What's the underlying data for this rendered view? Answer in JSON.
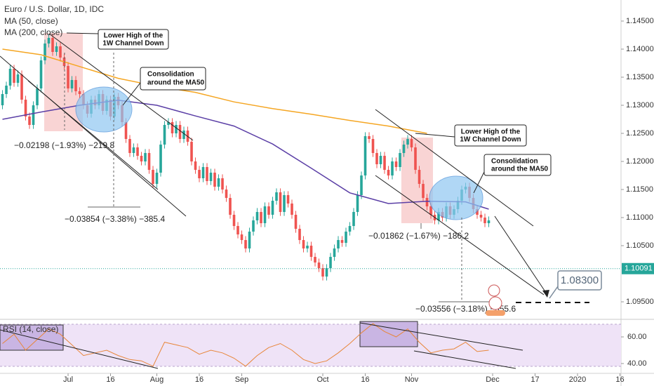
{
  "chart_data": {
    "type": "candlestick",
    "title": "Euro / U.S. Dollar, 1D, IDC",
    "up_color": "#26a69a",
    "down_color": "#ef5350",
    "open": [
      1.13,
      1.132,
      1.1335,
      1.1365,
      1.134,
      1.1355,
      1.131,
      1.128,
      1.1265,
      1.13,
      1.133,
      1.138,
      1.141,
      1.142,
      1.1395,
      1.1405,
      1.1385,
      1.137,
      1.133,
      1.1345,
      1.1325,
      1.132,
      1.13,
      1.1285,
      1.131,
      1.13,
      1.132,
      1.129,
      1.131,
      1.128,
      1.1315,
      1.13,
      1.127,
      1.124,
      1.1215,
      1.1225,
      1.121,
      1.12,
      1.1215,
      1.1185,
      1.116,
      1.118,
      1.123,
      1.1265,
      1.127,
      1.125,
      1.1265,
      1.124,
      1.1255,
      1.1235,
      1.12,
      1.1185,
      1.117,
      1.119,
      1.1165,
      1.118,
      1.1155,
      1.117,
      1.115,
      1.1135,
      1.1105,
      1.1085,
      1.107,
      1.106,
      1.1045,
      1.1075,
      1.1095,
      1.111,
      1.109,
      1.112,
      1.1105,
      1.113,
      1.1145,
      1.111,
      1.114,
      1.1125,
      1.1105,
      1.108,
      1.106,
      1.1045,
      1.105,
      1.103,
      1.102,
      1.101,
      1.0995,
      1.101,
      1.103,
      1.1045,
      1.106,
      1.1055,
      1.1075,
      1.1085,
      1.111,
      1.114,
      1.1175,
      1.1245,
      1.124,
      1.1215,
      1.1195,
      1.121,
      1.1185,
      1.1175,
      1.12,
      1.119,
      1.1215,
      1.123,
      1.124,
      1.1225,
      1.1185,
      1.116,
      1.1135,
      1.112,
      1.1105,
      1.1095,
      1.111,
      1.11,
      1.112,
      1.1105,
      1.1115,
      1.113,
      1.115,
      1.1155,
      1.1135,
      1.1115,
      1.1105,
      1.11,
      1.109
    ],
    "high": [
      1.1327,
      1.1342,
      1.1372,
      1.1372,
      1.1362,
      1.1362,
      1.1317,
      1.1287,
      1.1307,
      1.1337,
      1.1387,
      1.1417,
      1.1427,
      1.1427,
      1.1412,
      1.1412,
      1.1392,
      1.1377,
      1.1352,
      1.1352,
      1.1332,
      1.1327,
      1.1307,
      1.1317,
      1.1317,
      1.1327,
      1.1327,
      1.1317,
      1.1317,
      1.1322,
      1.1322,
      1.1307,
      1.1277,
      1.1247,
      1.1232,
      1.1232,
      1.1217,
      1.1222,
      1.1222,
      1.1192,
      1.1187,
      1.1237,
      1.1272,
      1.1277,
      1.1277,
      1.1272,
      1.1272,
      1.1262,
      1.1262,
      1.1242,
      1.1207,
      1.1192,
      1.1197,
      1.1197,
      1.1187,
      1.1187,
      1.1177,
      1.1177,
      1.1157,
      1.1142,
      1.1112,
      1.1092,
      1.1077,
      1.1067,
      1.1082,
      1.1102,
      1.1117,
      1.1117,
      1.1127,
      1.1127,
      1.1137,
      1.1152,
      1.1152,
      1.1147,
      1.1147,
      1.1132,
      1.1112,
      1.1087,
      1.1067,
      1.1057,
      1.1057,
      1.1037,
      1.1027,
      1.1017,
      1.1017,
      1.1037,
      1.1052,
      1.1067,
      1.1067,
      1.1082,
      1.1092,
      1.1117,
      1.1147,
      1.1182,
      1.1252,
      1.1252,
      1.1247,
      1.1222,
      1.1217,
      1.1217,
      1.1192,
      1.1207,
      1.1207,
      1.1222,
      1.1237,
      1.1247,
      1.1247,
      1.1232,
      1.1192,
      1.1167,
      1.1142,
      1.1127,
      1.1112,
      1.1117,
      1.1117,
      1.1127,
      1.1127,
      1.1122,
      1.1137,
      1.1157,
      1.1162,
      1.1162,
      1.1142,
      1.1122,
      1.1112,
      1.1107,
      1.1102
    ],
    "low": [
      1.1293,
      1.1313,
      1.1328,
      1.1333,
      1.1333,
      1.1303,
      1.1273,
      1.1258,
      1.1258,
      1.1293,
      1.1323,
      1.1373,
      1.1403,
      1.1388,
      1.1388,
      1.1378,
      1.1363,
      1.1323,
      1.1323,
      1.1318,
      1.1313,
      1.1293,
      1.1278,
      1.1278,
      1.1293,
      1.1293,
      1.1283,
      1.1283,
      1.1273,
      1.1273,
      1.1293,
      1.1263,
      1.1233,
      1.1208,
      1.1208,
      1.1203,
      1.1193,
      1.1193,
      1.1178,
      1.1153,
      1.1153,
      1.1173,
      1.1223,
      1.1258,
      1.1243,
      1.1243,
      1.1233,
      1.1233,
      1.1228,
      1.1193,
      1.1178,
      1.1163,
      1.1163,
      1.1158,
      1.1158,
      1.1148,
      1.1148,
      1.1143,
      1.1128,
      1.1098,
      1.1078,
      1.1063,
      1.1053,
      1.1038,
      1.1038,
      1.1068,
      1.1088,
      1.1083,
      1.1083,
      1.1098,
      1.1098,
      1.1123,
      1.1103,
      1.1103,
      1.1118,
      1.1098,
      1.1073,
      1.1053,
      1.1038,
      1.1038,
      1.1023,
      1.1013,
      1.1003,
      1.0988,
      1.0988,
      1.1003,
      1.1023,
      1.1038,
      1.1048,
      1.1048,
      1.1068,
      1.1078,
      1.1103,
      1.1133,
      1.1168,
      1.1233,
      1.1208,
      1.1188,
      1.1188,
      1.1178,
      1.1168,
      1.1168,
      1.1183,
      1.1183,
      1.1208,
      1.1223,
      1.1218,
      1.1178,
      1.1153,
      1.1128,
      1.1113,
      1.1098,
      1.1088,
      1.1088,
      1.1093,
      1.1093,
      1.1098,
      1.1098,
      1.1108,
      1.1123,
      1.1143,
      1.1128,
      1.1108,
      1.1098,
      1.1093,
      1.1083,
      1.1083
    ],
    "close": [
      1.132,
      1.1335,
      1.1365,
      1.134,
      1.1355,
      1.131,
      1.128,
      1.1265,
      1.13,
      1.133,
      1.138,
      1.141,
      1.142,
      1.1395,
      1.1405,
      1.1385,
      1.137,
      1.133,
      1.1345,
      1.1325,
      1.132,
      1.13,
      1.1285,
      1.131,
      1.13,
      1.132,
      1.129,
      1.131,
      1.128,
      1.1315,
      1.13,
      1.127,
      1.124,
      1.1215,
      1.1225,
      1.121,
      1.12,
      1.1215,
      1.1185,
      1.116,
      1.118,
      1.123,
      1.1265,
      1.127,
      1.125,
      1.1265,
      1.124,
      1.1255,
      1.1235,
      1.12,
      1.1185,
      1.117,
      1.119,
      1.1165,
      1.118,
      1.1155,
      1.117,
      1.115,
      1.1135,
      1.1105,
      1.1085,
      1.107,
      1.106,
      1.1045,
      1.1075,
      1.1095,
      1.111,
      1.109,
      1.112,
      1.1105,
      1.113,
      1.1145,
      1.111,
      1.114,
      1.1125,
      1.1105,
      1.108,
      1.106,
      1.1045,
      1.105,
      1.103,
      1.102,
      1.101,
      1.0995,
      1.101,
      1.103,
      1.1045,
      1.106,
      1.1055,
      1.1075,
      1.1085,
      1.111,
      1.114,
      1.1175,
      1.1245,
      1.124,
      1.1215,
      1.1195,
      1.121,
      1.1185,
      1.1175,
      1.12,
      1.119,
      1.1215,
      1.123,
      1.124,
      1.1225,
      1.1185,
      1.116,
      1.1135,
      1.112,
      1.1105,
      1.1095,
      1.111,
      1.11,
      1.112,
      1.1105,
      1.1115,
      1.113,
      1.115,
      1.1155,
      1.1135,
      1.1115,
      1.1105,
      1.11,
      1.109,
      1.1095
    ],
    "series": [
      {
        "name": "MA (50, close)",
        "color": "#5b3fa6",
        "x": [
          0,
          10,
          20,
          30,
          40,
          50,
          60,
          70,
          80,
          90,
          100,
          110,
          120,
          126
        ],
        "values": [
          1.1275,
          1.1288,
          1.13,
          1.1309,
          1.13,
          1.1281,
          1.1263,
          1.1231,
          1.1188,
          1.1144,
          1.1125,
          1.1129,
          1.1128,
          1.1115
        ]
      },
      {
        "name": "MA (200, close)",
        "color": "#f5a623",
        "x": [
          0,
          10,
          20,
          30,
          40,
          50,
          60,
          70,
          80,
          90,
          100,
          110
        ],
        "values": [
          1.14,
          1.139,
          1.1369,
          1.1348,
          1.1334,
          1.1323,
          1.1306,
          1.1294,
          1.1284,
          1.1273,
          1.1263,
          1.125
        ]
      }
    ],
    "last_price": 1.10091,
    "xlim": [
      -0.64,
      160.27
    ],
    "ylim": [
      1.09188,
      1.14875
    ],
    "yticks": [
      {
        "value": 1.145,
        "label": "1.14500"
      },
      {
        "value": 1.14,
        "label": "1.14000"
      },
      {
        "value": 1.135,
        "label": "1.13500"
      },
      {
        "value": 1.13,
        "label": "1.13000"
      },
      {
        "value": 1.125,
        "label": "1.12500"
      },
      {
        "value": 1.12,
        "label": "1.12000"
      },
      {
        "value": 1.115,
        "label": "1.11500"
      },
      {
        "value": 1.11,
        "label": "1.11000"
      },
      {
        "value": 1.105,
        "label": "1.10500"
      },
      {
        "value": 1.095,
        "label": "1.09500"
      }
    ],
    "xticks": [
      {
        "value": 17,
        "label": "Jul"
      },
      {
        "value": 28,
        "label": "16"
      },
      {
        "value": 40,
        "label": "Aug"
      },
      {
        "value": 51,
        "label": "16"
      },
      {
        "value": 62,
        "label": "Sep"
      },
      {
        "value": 83,
        "label": "Oct"
      },
      {
        "value": 94,
        "label": "16"
      },
      {
        "value": 106,
        "label": "Nov"
      },
      {
        "value": 127,
        "label": "Dec"
      },
      {
        "value": 138,
        "label": "17"
      },
      {
        "value": 149,
        "label": "2020"
      },
      {
        "value": 160,
        "label": "16"
      }
    ],
    "rsi": {
      "name": "RSI (14, close)",
      "color": "#e8863a",
      "x": [
        0,
        3,
        6,
        9,
        12,
        15,
        18,
        21,
        24,
        27,
        30,
        33,
        36,
        39,
        42,
        45,
        48,
        51,
        54,
        57,
        60,
        63,
        66,
        69,
        72,
        75,
        78,
        81,
        84,
        87,
        90,
        93,
        96,
        99,
        102,
        105,
        108,
        111,
        114,
        117,
        120,
        123,
        126
      ],
      "values": [
        55,
        62,
        50,
        58,
        66,
        62,
        54,
        46,
        48,
        50,
        46,
        43,
        42,
        38,
        56,
        54,
        52,
        47,
        50,
        48,
        44,
        38,
        46,
        52,
        55,
        50,
        43,
        40,
        42,
        48,
        55,
        63,
        70,
        64,
        60,
        66,
        56,
        48,
        50,
        51,
        56,
        49,
        50
      ],
      "ylim": [
        32.6,
        73.2
      ],
      "yticks": [
        {
          "value": 60,
          "label": "60.00"
        },
        {
          "value": 40,
          "label": "40.00"
        }
      ]
    },
    "annotations": {
      "lower_high_1": [
        "Lower High of the",
        "1W Channel Down"
      ],
      "consolidation_1": [
        "Consolidation",
        "around the MA50"
      ],
      "lower_high_2": [
        "Lower High of the",
        "1W Channel Down"
      ],
      "consolidation_2": [
        "Consolidation",
        "around the MA50"
      ],
      "measure_1": "−0.02198 (−1.93%) −219.8",
      "measure_2": "−0.03854 (−3.38%) −385.4",
      "measure_3": "−0.01862 (−1.67%) −186.2",
      "measure_4": "−0.03556 (−3.18%) −355.6",
      "target": "1.08300"
    }
  }
}
